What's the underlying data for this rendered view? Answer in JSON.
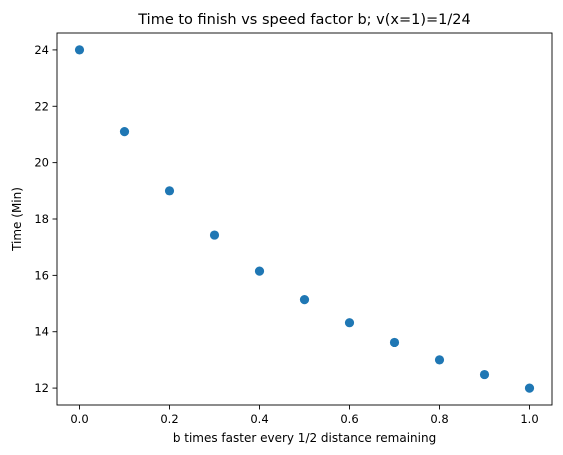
{
  "chart_data": {
    "type": "scatter",
    "title": "Time to finish vs speed factor b; v(x=1)=1/24",
    "xlabel": "b times faster every 1/2 distance remaining",
    "ylabel": "Time (Min)",
    "xlim": [
      -0.05,
      1.05
    ],
    "ylim": [
      11.4,
      24.6
    ],
    "xticks": [
      0.0,
      0.2,
      0.4,
      0.6,
      0.8,
      1.0
    ],
    "xtick_labels": [
      "0.0",
      "0.2",
      "0.4",
      "0.6",
      "0.8",
      "1.0"
    ],
    "yticks": [
      12,
      14,
      16,
      18,
      20,
      22,
      24
    ],
    "ytick_labels": [
      "12",
      "14",
      "16",
      "18",
      "20",
      "22",
      "24"
    ],
    "grid": false,
    "legend": "none",
    "marker_color": "#1f77b4",
    "series": [
      {
        "x": [
          0.0,
          0.1,
          0.2,
          0.3,
          0.4,
          0.5,
          0.6,
          0.7,
          0.8,
          0.9,
          1.0
        ],
        "values": [
          24.0,
          21.1,
          19.0,
          17.43,
          16.15,
          15.14,
          14.32,
          13.62,
          13.0,
          12.48,
          12.0
        ]
      }
    ]
  }
}
